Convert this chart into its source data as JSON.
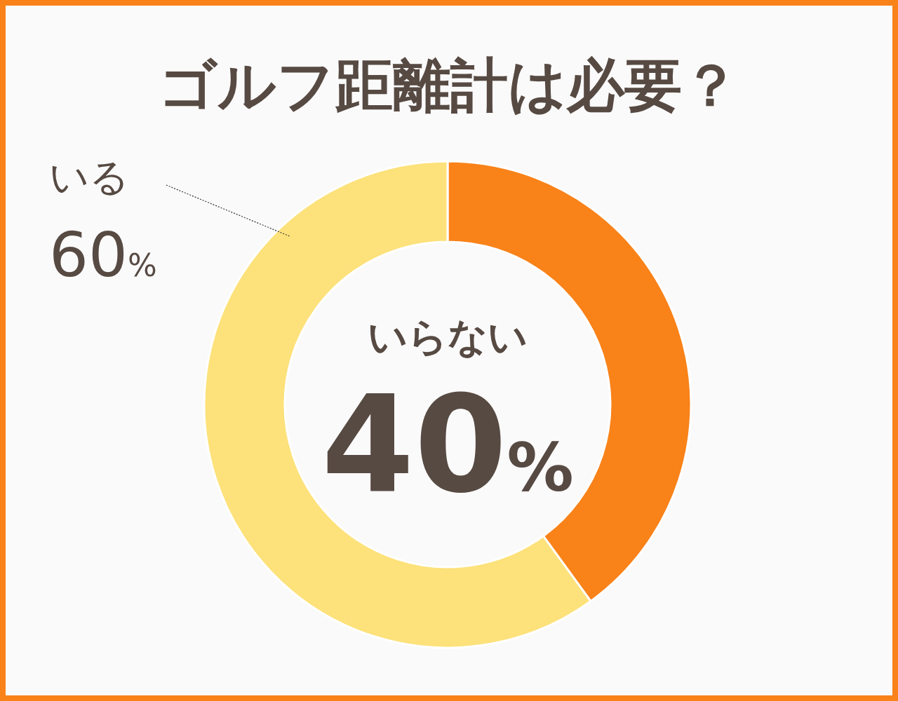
{
  "chart_data": {
    "type": "donut",
    "title": "ゴルフ距離計は必要？",
    "categories": [
      "いらない",
      "いる"
    ],
    "values": [
      40,
      60
    ],
    "colors": [
      "#f98219",
      "#fde17a"
    ],
    "value_labels": [
      "40%",
      "60%"
    ]
  }
}
